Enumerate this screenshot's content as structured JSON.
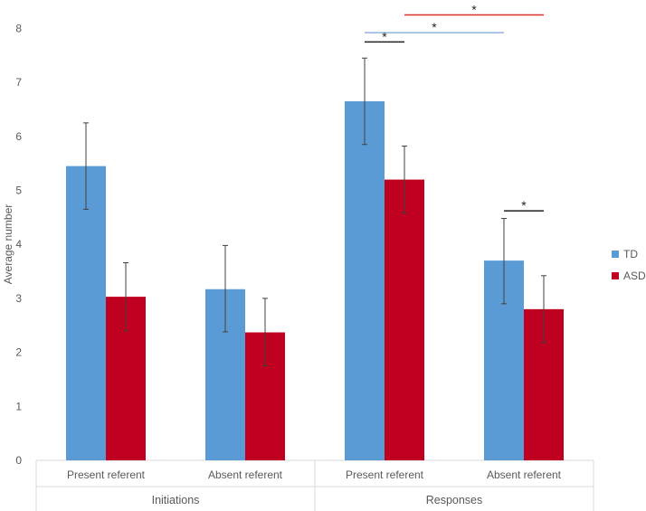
{
  "chart_data": {
    "type": "bar",
    "ylabel": "Average number",
    "ylim": [
      0,
      8
    ],
    "yticks": [
      "0",
      "1",
      "2",
      "3",
      "4",
      "5",
      "6",
      "7",
      "8"
    ],
    "grid": false,
    "legend_position": "right",
    "groups": [
      {
        "label": "Initiations",
        "categories": [
          "Present referent",
          "Absent referent"
        ]
      },
      {
        "label": "Responses",
        "categories": [
          "Present referent",
          "Absent referent"
        ]
      }
    ],
    "categories": [
      "Present referent",
      "Absent referent",
      "Present referent",
      "Absent referent"
    ],
    "series": [
      {
        "name": "TD",
        "color": "#5b9bd5",
        "values": [
          5.45,
          3.17,
          6.65,
          3.7
        ],
        "error_low": [
          4.65,
          2.38,
          5.85,
          2.9
        ],
        "error_high": [
          6.25,
          3.98,
          7.45,
          4.48
        ]
      },
      {
        "name": "ASD",
        "color": "#c00020",
        "values": [
          3.03,
          2.37,
          5.2,
          2.8
        ],
        "error_low": [
          2.4,
          1.75,
          4.58,
          2.18
        ],
        "error_high": [
          3.66,
          3.0,
          5.82,
          3.42
        ]
      }
    ],
    "significance": [
      {
        "label": "*",
        "y": 7.92,
        "from": {
          "category": 2,
          "series": "TD"
        },
        "to": {
          "category": 3,
          "series": "TD"
        },
        "color": "#8fb4d9"
      },
      {
        "label": "*",
        "y": 8.25,
        "from": {
          "category": 2,
          "series": "ASD"
        },
        "to": {
          "category": 3,
          "series": "ASD"
        },
        "color": "#e0302a"
      },
      {
        "label": "*",
        "y": 7.75,
        "from": {
          "category": 2,
          "series": "TD"
        },
        "to": {
          "category": 2,
          "series": "ASD"
        },
        "color": "#222222"
      },
      {
        "label": "*",
        "y": 4.62,
        "from": {
          "category": 3,
          "series": "TD"
        },
        "to": {
          "category": 3,
          "series": "ASD"
        },
        "color": "#222222"
      }
    ]
  }
}
